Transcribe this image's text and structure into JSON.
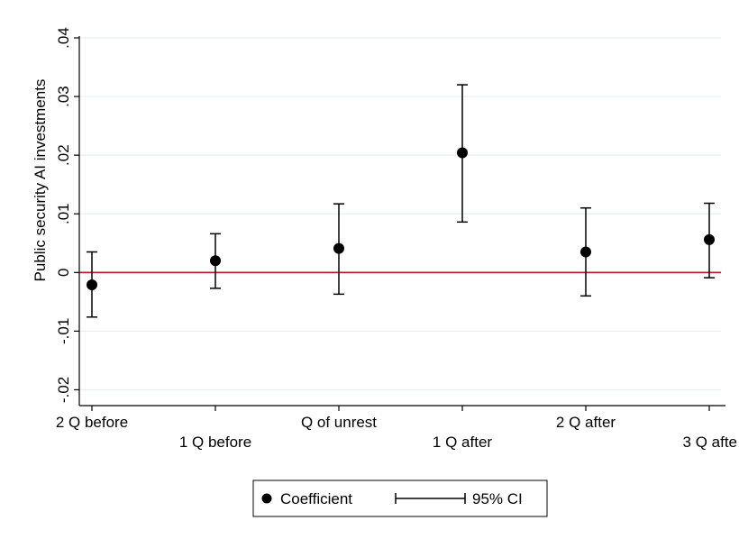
{
  "chart_data": {
    "type": "scatter",
    "ylabel": "Public security AI investments",
    "ylim": [
      -0.02,
      0.04
    ],
    "yticks": [
      -0.02,
      -0.01,
      0,
      0.01,
      0.02,
      0.03,
      0.04
    ],
    "ytick_labels": [
      "-.02",
      "-.01",
      "0",
      ".01",
      ".02",
      ".03",
      ".04"
    ],
    "categories": [
      "2 Q before",
      "1 Q before",
      "Q of unrest",
      "1 Q after",
      "2 Q after",
      "3 Q afte"
    ],
    "series": [
      {
        "name": "Coefficient",
        "values": [
          -0.0021,
          0.002,
          0.0041,
          0.0204,
          0.0035,
          0.0056
        ],
        "ci_low": [
          -0.0076,
          -0.0027,
          -0.0037,
          0.0086,
          -0.004,
          -0.0009
        ],
        "ci_high": [
          0.0035,
          0.0066,
          0.0117,
          0.032,
          0.011,
          0.0118
        ]
      }
    ],
    "reference_line": 0,
    "grid": true,
    "legend": {
      "position": "bottom",
      "entries": [
        "Coefficient",
        "95% CI"
      ]
    },
    "colors": {
      "points": "#000000",
      "reference_line": "#c8102e",
      "grid": "#e8eef1"
    }
  }
}
